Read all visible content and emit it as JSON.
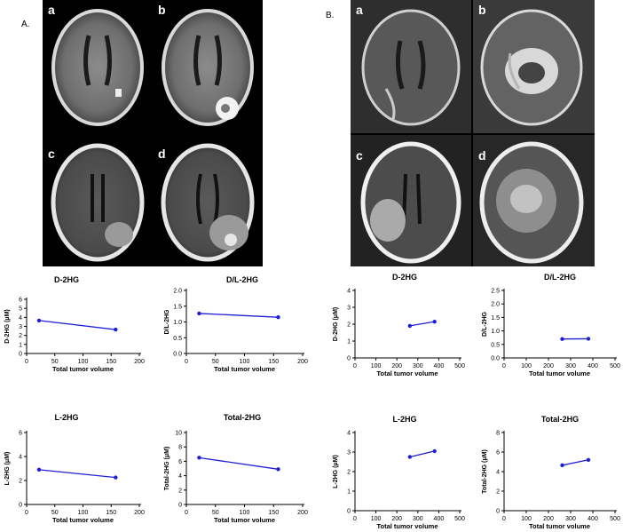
{
  "figure": {
    "panel_a_label": "A.",
    "panel_b_label": "B."
  },
  "mri_panels": [
    {
      "group": "A",
      "images": [
        {
          "letter": "a",
          "kind": "t1-small-lesion"
        },
        {
          "letter": "b",
          "kind": "t1-enhancing-lesion"
        },
        {
          "letter": "c",
          "kind": "flair-small"
        },
        {
          "letter": "d",
          "kind": "flair-large"
        }
      ]
    },
    {
      "group": "B",
      "images": [
        {
          "letter": "a",
          "kind": "t1-resection"
        },
        {
          "letter": "b",
          "kind": "t1-large-tumor"
        },
        {
          "letter": "c",
          "kind": "flair-resection"
        },
        {
          "letter": "d",
          "kind": "flair-large-tumor"
        }
      ]
    }
  ],
  "colors": {
    "series": "#1f1fd6",
    "axis": "#000000"
  },
  "chart_data": [
    {
      "type": "line",
      "title": "D-2HG",
      "xlabel": "Total tumor volume",
      "ylabel": "D-2HG (μM)",
      "xlim": [
        0,
        200
      ],
      "ylim": [
        0,
        6
      ],
      "xticks": [
        "0",
        "50",
        "100",
        "150",
        "200"
      ],
      "yticks": [
        "0",
        "1",
        "2",
        "3",
        "4",
        "5",
        "6"
      ],
      "x": [
        22,
        158
      ],
      "y": [
        3.65,
        2.65
      ]
    },
    {
      "type": "line",
      "title": "D/L-2HG",
      "xlabel": "Total tumor volume",
      "ylabel": "D/L-2HG",
      "xlim": [
        0,
        200
      ],
      "ylim": [
        0,
        2.0
      ],
      "xticks": [
        "0",
        "50",
        "100",
        "150",
        "200"
      ],
      "yticks": [
        "0.0",
        "0.5",
        "1.0",
        "1.5",
        "2.0"
      ],
      "x": [
        22,
        158
      ],
      "y": [
        1.27,
        1.15
      ]
    },
    {
      "type": "line",
      "title": "D-2HG",
      "xlabel": "Total tumor volume",
      "ylabel": "D-2HG (μM)",
      "xlim": [
        0,
        500
      ],
      "ylim": [
        0,
        4
      ],
      "xticks": [
        "0",
        "100",
        "200",
        "300",
        "400",
        "500"
      ],
      "yticks": [
        "0",
        "1",
        "2",
        "3",
        "4"
      ],
      "x": [
        262,
        380
      ],
      "y": [
        1.9,
        2.15
      ]
    },
    {
      "type": "line",
      "title": "D/L-2HG",
      "xlabel": "Total tumor volume",
      "ylabel": "D/L-2HG",
      "xlim": [
        0,
        500
      ],
      "ylim": [
        0,
        2.5
      ],
      "xticks": [
        "0",
        "100",
        "200",
        "300",
        "400",
        "500"
      ],
      "yticks": [
        "0.0",
        "0.5",
        "1.0",
        "1.5",
        "2.0",
        "2.5"
      ],
      "x": [
        262,
        380
      ],
      "y": [
        0.7,
        0.71
      ]
    },
    {
      "type": "line",
      "title": "L-2HG",
      "xlabel": "Total tumor volume",
      "ylabel": "L-2HG (μM)",
      "xlim": [
        0,
        200
      ],
      "ylim": [
        0,
        6
      ],
      "xticks": [
        "0",
        "50",
        "100",
        "150",
        "200"
      ],
      "yticks": [
        "0",
        "2",
        "4",
        "6"
      ],
      "x": [
        22,
        158
      ],
      "y": [
        2.9,
        2.25
      ]
    },
    {
      "type": "line",
      "title": "Total-2HG",
      "xlabel": "Total tumor volume",
      "ylabel": "Total-2HG (μM)",
      "xlim": [
        0,
        200
      ],
      "ylim": [
        0,
        10
      ],
      "xticks": [
        "0",
        "50",
        "100",
        "150",
        "200"
      ],
      "yticks": [
        "0",
        "2",
        "4",
        "6",
        "8",
        "10"
      ],
      "x": [
        22,
        158
      ],
      "y": [
        6.5,
        4.9
      ]
    },
    {
      "type": "line",
      "title": "L-2HG",
      "xlabel": "Total tumor volume",
      "ylabel": "L-2HG (μM)",
      "xlim": [
        0,
        500
      ],
      "ylim": [
        0,
        4
      ],
      "xticks": [
        "0",
        "100",
        "200",
        "300",
        "400",
        "500"
      ],
      "yticks": [
        "0",
        "1",
        "2",
        "3",
        "4"
      ],
      "x": [
        262,
        380
      ],
      "y": [
        2.75,
        3.05
      ]
    },
    {
      "type": "line",
      "title": "Total-2HG",
      "xlabel": "Total tumor volume",
      "ylabel": "Total-2HG (μM)",
      "xlim": [
        0,
        500
      ],
      "ylim": [
        0,
        8
      ],
      "xticks": [
        "0",
        "100",
        "200",
        "300",
        "400",
        "500"
      ],
      "yticks": [
        "0",
        "2",
        "4",
        "6",
        "8"
      ],
      "x": [
        262,
        380
      ],
      "y": [
        4.65,
        5.2
      ]
    }
  ]
}
